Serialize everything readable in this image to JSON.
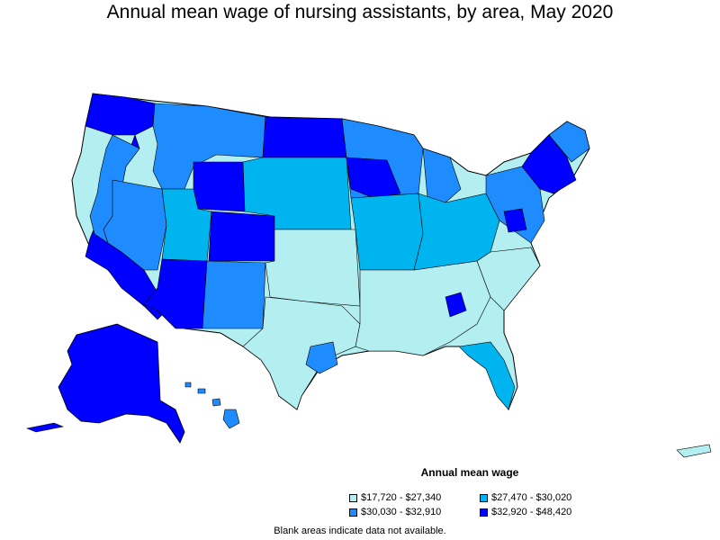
{
  "title": "Annual mean wage of nursing assistants, by area, May 2020",
  "legend": {
    "title": "Annual mean wage",
    "items": [
      {
        "label": "$17,720 - $27,340",
        "color": "#b3eef0"
      },
      {
        "label": "$27,470 - $30,020",
        "color": "#00b4f0"
      },
      {
        "label": "$30,030 - $32,910",
        "color": "#1e8cff"
      },
      {
        "label": "$32,920 - $48,420",
        "color": "#0000ff"
      }
    ]
  },
  "footnote": "Blank areas indicate data not available."
}
